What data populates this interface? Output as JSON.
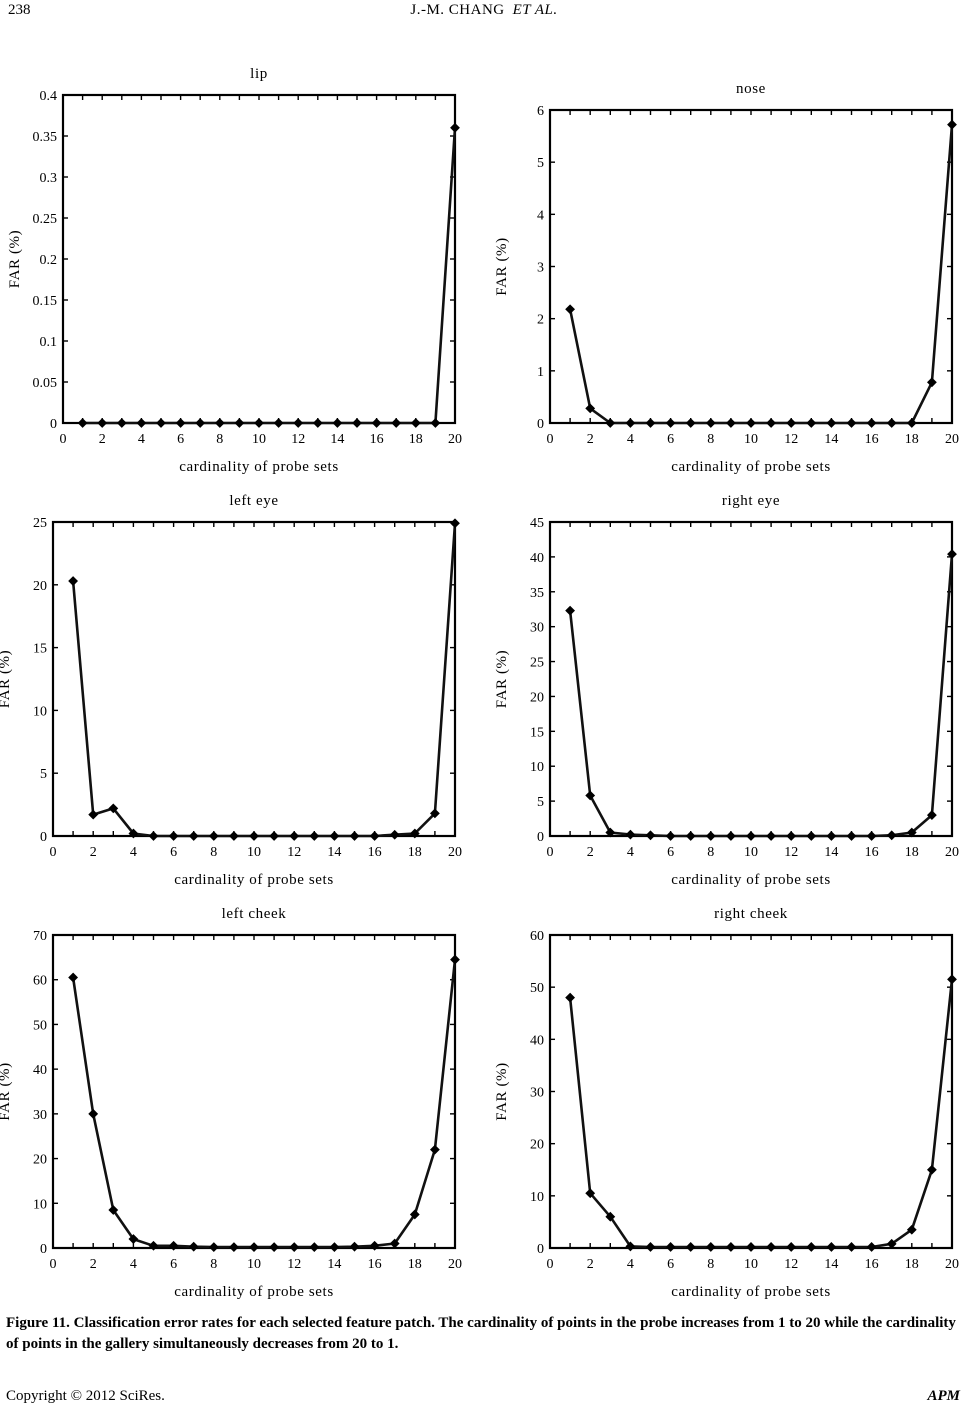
{
  "header": {
    "page_number": "238",
    "running_head": "J.-M. CHANG",
    "running_head_italic": "ET AL."
  },
  "caption": "Figure 11. Classification error rates for each selected feature patch. The cardinality of points in the probe increases from 1 to 20 while the cardinality of points in the gallery simultaneously decreases from 20 to 1.",
  "footer": {
    "copyright": "Copyright © 2012 SciRes.",
    "journal": "APM"
  },
  "chart_data": [
    {
      "type": "line",
      "title": "lip",
      "xlabel": "cardinality of probe sets",
      "ylabel": "FAR (%)",
      "xlim": [
        0,
        20
      ],
      "ylim": [
        0,
        0.4
      ],
      "xticks": [
        "0",
        "2",
        "4",
        "6",
        "8",
        "10",
        "12",
        "14",
        "16",
        "18",
        "20"
      ],
      "yticks": [
        "0",
        "0.05",
        "0.1",
        "0.15",
        "0.2",
        "0.25",
        "0.3",
        "0.35",
        "0.4"
      ],
      "grid": false,
      "x": [
        1,
        2,
        3,
        4,
        5,
        6,
        7,
        8,
        9,
        10,
        11,
        12,
        13,
        14,
        15,
        16,
        17,
        18,
        19,
        20
      ],
      "values": [
        0,
        0,
        0,
        0,
        0,
        0,
        0,
        0,
        0,
        0,
        0,
        0,
        0,
        0,
        0,
        0,
        0,
        0,
        0,
        0.36
      ]
    },
    {
      "type": "line",
      "title": "nose",
      "xlabel": "cardinality of probe sets",
      "ylabel": "FAR (%)",
      "xlim": [
        0,
        20
      ],
      "ylim": [
        0,
        6
      ],
      "xticks": [
        "0",
        "2",
        "4",
        "6",
        "8",
        "10",
        "12",
        "14",
        "16",
        "18",
        "20"
      ],
      "yticks": [
        "0",
        "1",
        "2",
        "3",
        "4",
        "5",
        "6"
      ],
      "grid": false,
      "x": [
        1,
        2,
        3,
        4,
        5,
        6,
        7,
        8,
        9,
        10,
        11,
        12,
        13,
        14,
        15,
        16,
        17,
        18,
        19,
        20
      ],
      "values": [
        2.18,
        0.28,
        0,
        0,
        0,
        0,
        0,
        0,
        0,
        0,
        0,
        0,
        0,
        0,
        0,
        0,
        0,
        0,
        0.78,
        5.72
      ]
    },
    {
      "type": "line",
      "title": "left eye",
      "xlabel": "cardinality of probe sets",
      "ylabel": "FAR (%)",
      "xlim": [
        0,
        20
      ],
      "ylim": [
        0,
        25
      ],
      "xticks": [
        "0",
        "2",
        "4",
        "6",
        "8",
        "10",
        "12",
        "14",
        "16",
        "18",
        "20"
      ],
      "yticks": [
        "0",
        "5",
        "10",
        "15",
        "20",
        "25"
      ],
      "grid": false,
      "x": [
        1,
        2,
        3,
        4,
        5,
        6,
        7,
        8,
        9,
        10,
        11,
        12,
        13,
        14,
        15,
        16,
        17,
        18,
        19,
        20
      ],
      "values": [
        20.3,
        1.7,
        2.2,
        0.2,
        0,
        0,
        0,
        0,
        0,
        0,
        0,
        0,
        0,
        0,
        0,
        0,
        0.1,
        0.2,
        1.8,
        24.9
      ]
    },
    {
      "type": "line",
      "title": "right eye",
      "xlabel": "cardinality of probe sets",
      "ylabel": "FAR (%)",
      "xlim": [
        0,
        20
      ],
      "ylim": [
        0,
        45
      ],
      "xticks": [
        "0",
        "2",
        "4",
        "6",
        "8",
        "10",
        "12",
        "14",
        "16",
        "18",
        "20"
      ],
      "yticks": [
        "0",
        "5",
        "10",
        "15",
        "20",
        "25",
        "30",
        "35",
        "40",
        "45"
      ],
      "grid": false,
      "x": [
        1,
        2,
        3,
        4,
        5,
        6,
        7,
        8,
        9,
        10,
        11,
        12,
        13,
        14,
        15,
        16,
        17,
        18,
        19,
        20
      ],
      "values": [
        32.3,
        5.8,
        0.5,
        0.2,
        0.1,
        0,
        0,
        0,
        0,
        0,
        0,
        0,
        0,
        0,
        0,
        0,
        0.1,
        0.5,
        3,
        40.4
      ]
    },
    {
      "type": "line",
      "title": "left cheek",
      "xlabel": "cardinality of probe sets",
      "ylabel": "FAR (%)",
      "xlim": [
        0,
        20
      ],
      "ylim": [
        0,
        70
      ],
      "xticks": [
        "0",
        "2",
        "4",
        "6",
        "8",
        "10",
        "12",
        "14",
        "16",
        "18",
        "20"
      ],
      "yticks": [
        "0",
        "10",
        "20",
        "30",
        "40",
        "50",
        "60",
        "70"
      ],
      "grid": false,
      "x": [
        1,
        2,
        3,
        4,
        5,
        6,
        7,
        8,
        9,
        10,
        11,
        12,
        13,
        14,
        15,
        16,
        17,
        18,
        19,
        20
      ],
      "values": [
        60.5,
        30,
        8.5,
        2,
        0.5,
        0.5,
        0.3,
        0.2,
        0.2,
        0.2,
        0.2,
        0.2,
        0.2,
        0.2,
        0.3,
        0.5,
        1,
        7.5,
        22,
        64.5
      ]
    },
    {
      "type": "line",
      "title": "right cheek",
      "xlabel": "cardinality of probe sets",
      "ylabel": "FAR (%)",
      "xlim": [
        0,
        20
      ],
      "ylim": [
        0,
        60
      ],
      "xticks": [
        "0",
        "2",
        "4",
        "6",
        "8",
        "10",
        "12",
        "14",
        "16",
        "18",
        "20"
      ],
      "yticks": [
        "0",
        "10",
        "20",
        "30",
        "40",
        "50",
        "60"
      ],
      "grid": false,
      "x": [
        1,
        2,
        3,
        4,
        5,
        6,
        7,
        8,
        9,
        10,
        11,
        12,
        13,
        14,
        15,
        16,
        17,
        18,
        19,
        20
      ],
      "values": [
        48,
        10.5,
        6,
        0.3,
        0.2,
        0.2,
        0.2,
        0.2,
        0.2,
        0.2,
        0.2,
        0.2,
        0.2,
        0.2,
        0.2,
        0.2,
        0.8,
        3.5,
        15,
        51.5
      ]
    }
  ]
}
